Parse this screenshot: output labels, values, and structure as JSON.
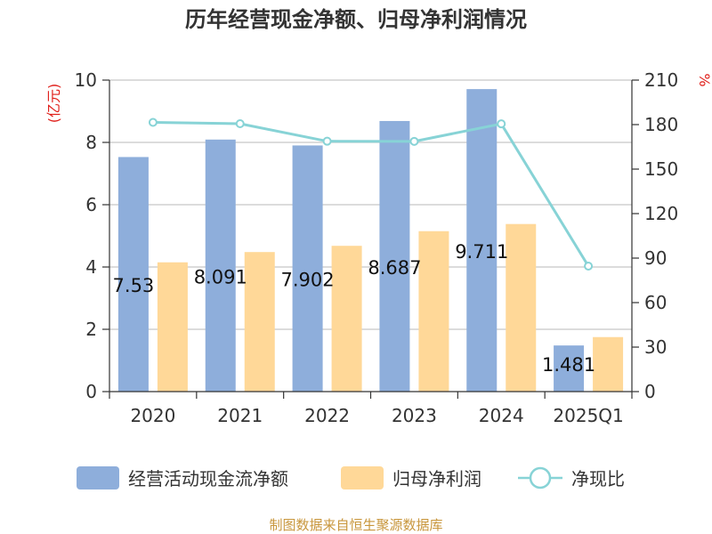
{
  "chart_data": {
    "type": "bar",
    "title": "历年经营现金净额、归母净利润情况",
    "categories": [
      "2020",
      "2021",
      "2022",
      "2023",
      "2024",
      "2025Q1"
    ],
    "series": [
      {
        "name": "经营活动现金流净额",
        "type": "bar",
        "axis": "left",
        "values": [
          7.53,
          8.091,
          7.902,
          8.687,
          9.711,
          1.481
        ],
        "color": "#8eaedb",
        "labels": [
          "7.53",
          "8.091",
          "7.902",
          "8.687",
          "9.711",
          "1.481"
        ]
      },
      {
        "name": "归母净利润",
        "type": "bar",
        "axis": "left",
        "values": [
          4.15,
          4.48,
          4.68,
          5.15,
          5.38,
          1.75
        ],
        "color": "#ffd898"
      },
      {
        "name": "净现比",
        "type": "line",
        "axis": "right",
        "values": [
          181.5,
          180.6,
          168.8,
          168.7,
          180.5,
          84.6
        ],
        "color": "#87d3d6"
      }
    ],
    "y_left": {
      "label": "(亿元)",
      "ylim": [
        0,
        10
      ],
      "ticks": [
        "0",
        "2",
        "4",
        "6",
        "8",
        "10"
      ],
      "tick_values": [
        0,
        2,
        4,
        6,
        8,
        10
      ]
    },
    "y_right": {
      "label": "%",
      "ylim": [
        0,
        210
      ],
      "ticks": [
        "0",
        "30",
        "60",
        "90",
        "120",
        "150",
        "180",
        "210"
      ],
      "tick_values": [
        0,
        30,
        60,
        90,
        120,
        150,
        180,
        210
      ]
    },
    "grid": true,
    "legend_position": "bottom"
  },
  "source": "制图数据来自恒生聚源数据库"
}
